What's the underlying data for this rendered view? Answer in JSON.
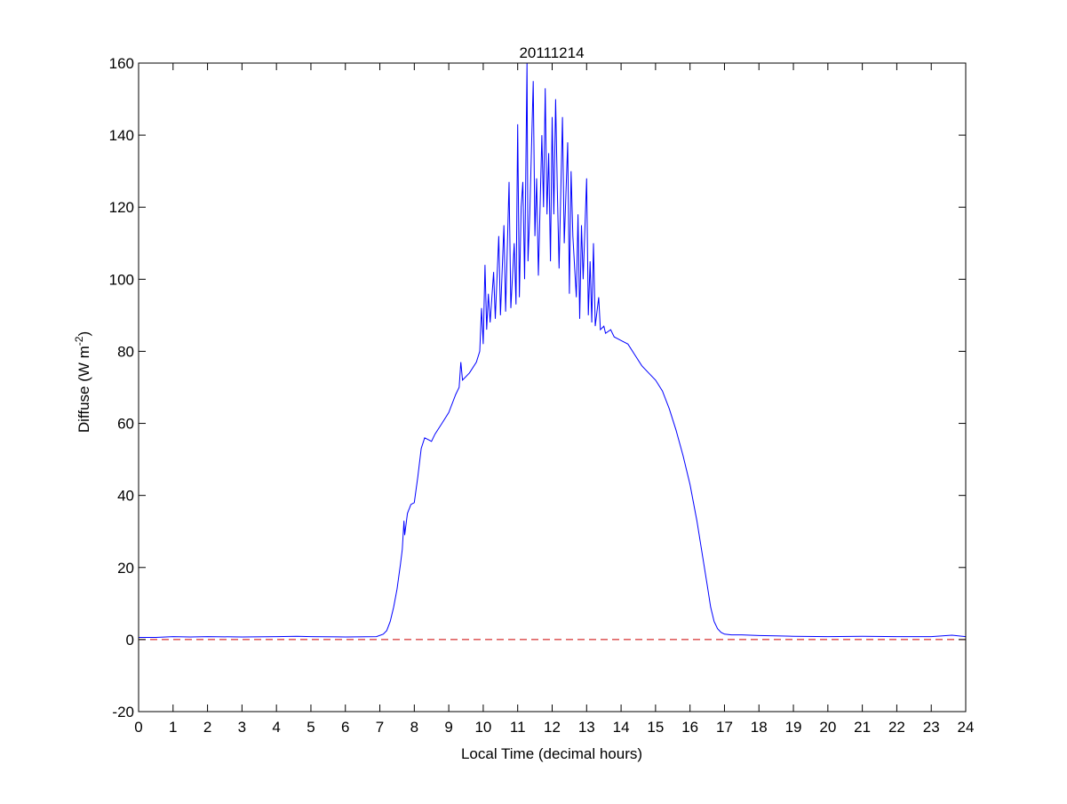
{
  "chart_data": {
    "type": "line",
    "title": "20111214",
    "xlabel": "Local Time (decimal hours)",
    "ylabel": "Diffuse (W m-2)",
    "ylabel_base": "Diffuse (W m",
    "ylabel_sup": "-2",
    "ylabel_end": ")",
    "xlim": [
      0,
      24
    ],
    "ylim": [
      -20,
      160
    ],
    "xticks": [
      0,
      1,
      2,
      3,
      4,
      5,
      6,
      7,
      8,
      9,
      10,
      11,
      12,
      13,
      14,
      15,
      16,
      17,
      18,
      19,
      20,
      21,
      22,
      23,
      24
    ],
    "yticks": [
      -20,
      0,
      20,
      40,
      60,
      80,
      100,
      120,
      140,
      160
    ],
    "grid": false,
    "series": [
      {
        "name": "Diffuse",
        "color": "#0000ff",
        "style": "solid",
        "points": [
          [
            0,
            0.6
          ],
          [
            0.5,
            0.6
          ],
          [
            1,
            0.8
          ],
          [
            1.5,
            0.7
          ],
          [
            2,
            0.8
          ],
          [
            3,
            0.7
          ],
          [
            4,
            0.8
          ],
          [
            4.6,
            0.9
          ],
          [
            5,
            0.8
          ],
          [
            6,
            0.7
          ],
          [
            6.9,
            0.8
          ],
          [
            7.1,
            1.5
          ],
          [
            7.2,
            2.5
          ],
          [
            7.3,
            5
          ],
          [
            7.4,
            9
          ],
          [
            7.5,
            14
          ],
          [
            7.6,
            21
          ],
          [
            7.65,
            25
          ],
          [
            7.7,
            33
          ],
          [
            7.72,
            29
          ],
          [
            7.8,
            35
          ],
          [
            7.9,
            37.5
          ],
          [
            8.0,
            38
          ],
          [
            8.1,
            45
          ],
          [
            8.2,
            53
          ],
          [
            8.3,
            56
          ],
          [
            8.4,
            55.5
          ],
          [
            8.5,
            55
          ],
          [
            8.6,
            57
          ],
          [
            8.8,
            60
          ],
          [
            9.0,
            63
          ],
          [
            9.2,
            68
          ],
          [
            9.3,
            70
          ],
          [
            9.35,
            77
          ],
          [
            9.4,
            72
          ],
          [
            9.6,
            74
          ],
          [
            9.8,
            77
          ],
          [
            9.9,
            80
          ],
          [
            9.95,
            92
          ],
          [
            10.0,
            82
          ],
          [
            10.05,
            104
          ],
          [
            10.1,
            86
          ],
          [
            10.15,
            96
          ],
          [
            10.2,
            88
          ],
          [
            10.3,
            102
          ],
          [
            10.35,
            89
          ],
          [
            10.45,
            112
          ],
          [
            10.5,
            90
          ],
          [
            10.6,
            115
          ],
          [
            10.65,
            91
          ],
          [
            10.75,
            127
          ],
          [
            10.8,
            92
          ],
          [
            10.9,
            110
          ],
          [
            10.95,
            93
          ],
          [
            11.0,
            143
          ],
          [
            11.05,
            95
          ],
          [
            11.1,
            120
          ],
          [
            11.15,
            127
          ],
          [
            11.2,
            100
          ],
          [
            11.27,
            160
          ],
          [
            11.3,
            105
          ],
          [
            11.35,
            118
          ],
          [
            11.45,
            155
          ],
          [
            11.5,
            112
          ],
          [
            11.55,
            128
          ],
          [
            11.6,
            101
          ],
          [
            11.7,
            140
          ],
          [
            11.75,
            120
          ],
          [
            11.8,
            153
          ],
          [
            11.85,
            118
          ],
          [
            11.9,
            135
          ],
          [
            11.95,
            105
          ],
          [
            12.0,
            145
          ],
          [
            12.05,
            118
          ],
          [
            12.1,
            150
          ],
          [
            12.15,
            125
          ],
          [
            12.2,
            103
          ],
          [
            12.3,
            145
          ],
          [
            12.35,
            110
          ],
          [
            12.45,
            138
          ],
          [
            12.5,
            96
          ],
          [
            12.55,
            130
          ],
          [
            12.6,
            112
          ],
          [
            12.7,
            95
          ],
          [
            12.75,
            118
          ],
          [
            12.8,
            89
          ],
          [
            12.85,
            115
          ],
          [
            12.9,
            100
          ],
          [
            13.0,
            128
          ],
          [
            13.05,
            90
          ],
          [
            13.1,
            105
          ],
          [
            13.15,
            88
          ],
          [
            13.2,
            110
          ],
          [
            13.25,
            87
          ],
          [
            13.35,
            95
          ],
          [
            13.4,
            86
          ],
          [
            13.5,
            87
          ],
          [
            13.55,
            85
          ],
          [
            13.7,
            86
          ],
          [
            13.8,
            84
          ],
          [
            14.0,
            83
          ],
          [
            14.2,
            82
          ],
          [
            14.4,
            79
          ],
          [
            14.6,
            76
          ],
          [
            14.8,
            74
          ],
          [
            15.0,
            72
          ],
          [
            15.2,
            69
          ],
          [
            15.4,
            64
          ],
          [
            15.6,
            58
          ],
          [
            15.8,
            51
          ],
          [
            16.0,
            43
          ],
          [
            16.2,
            33
          ],
          [
            16.4,
            21
          ],
          [
            16.5,
            15
          ],
          [
            16.6,
            9
          ],
          [
            16.7,
            5
          ],
          [
            16.8,
            3
          ],
          [
            16.9,
            2
          ],
          [
            17.0,
            1.5
          ],
          [
            17.2,
            1.3
          ],
          [
            17.5,
            1.3
          ],
          [
            18,
            1.1
          ],
          [
            18.5,
            1.0
          ],
          [
            19,
            0.9
          ],
          [
            20,
            0.8
          ],
          [
            21,
            0.9
          ],
          [
            22,
            0.8
          ],
          [
            23,
            0.8
          ],
          [
            23.6,
            1.2
          ],
          [
            24,
            0.8
          ]
        ]
      },
      {
        "name": "Zero line",
        "color": "#cc0000",
        "style": "dashed",
        "points": [
          [
            0,
            0
          ],
          [
            24,
            0
          ]
        ]
      }
    ]
  }
}
